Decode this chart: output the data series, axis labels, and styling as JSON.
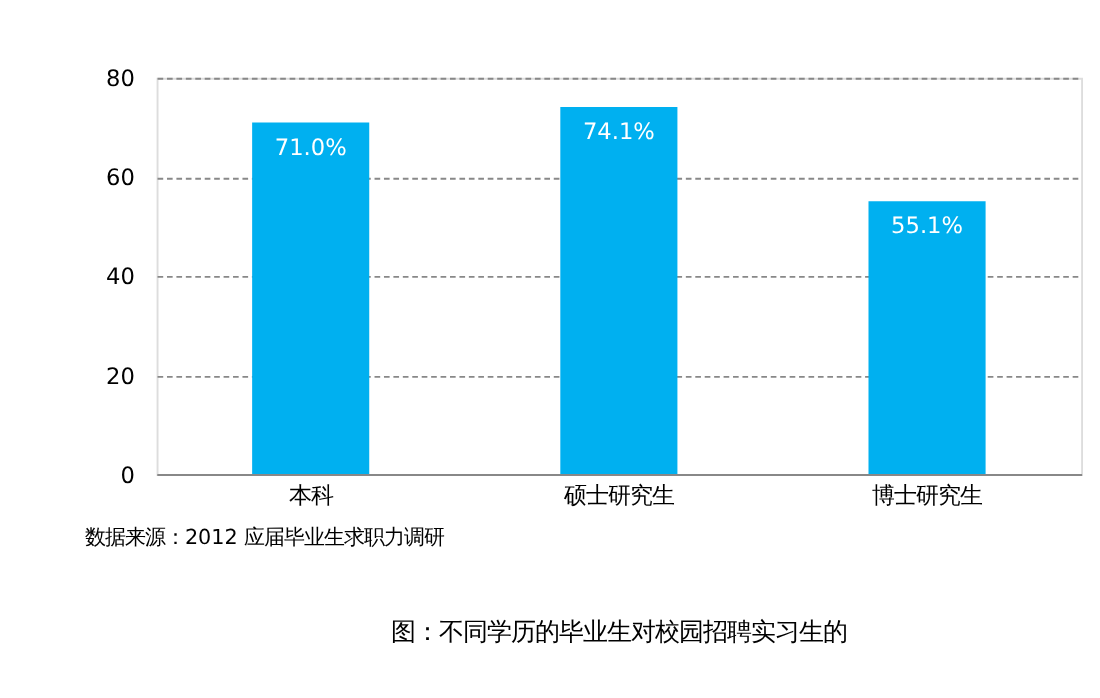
{
  "chart_data": {
    "type": "bar",
    "categories": [
      "本科",
      "硕士研究生",
      "博士研究生"
    ],
    "values": [
      71.0,
      74.1,
      55.1
    ],
    "value_labels": [
      "71.0%",
      "74.1%",
      "55.1%"
    ],
    "color": "#00b0f0",
    "ylim": [
      0,
      80
    ],
    "yticks": [
      0,
      20,
      40,
      60,
      80
    ],
    "grid": "y",
    "annotations": [
      "数据来源：2012 应届毕业生求职力调研",
      "图：不同学历的毕业生对校园招聘实习生的"
    ]
  }
}
